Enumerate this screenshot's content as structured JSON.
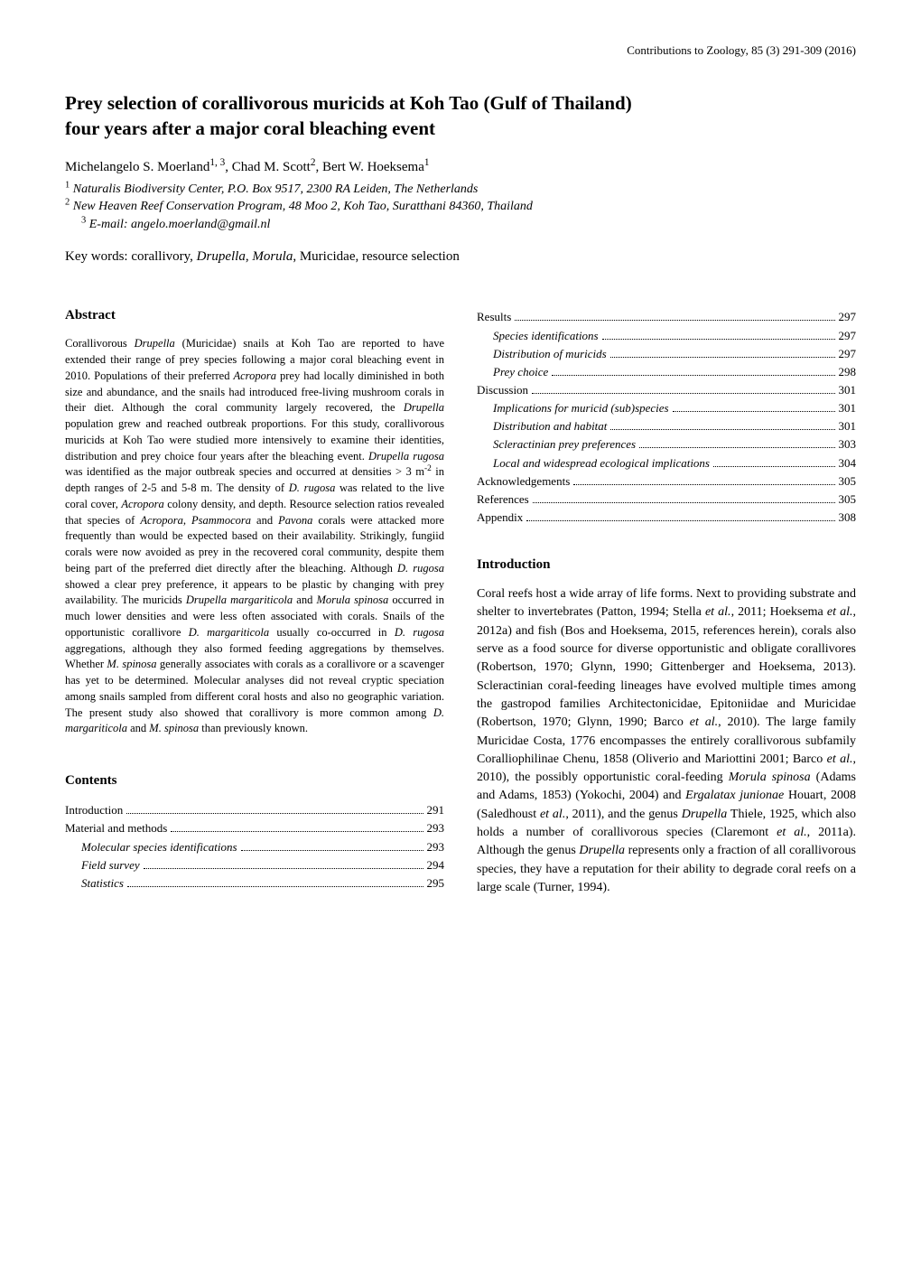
{
  "journal_header": "Contributions to Zoology, 85 (3) 291-309 (2016)",
  "title_line1": "Prey selection of corallivorous muricids at Koh Tao (Gulf of Thailand)",
  "title_line2": "four years after a major coral bleaching event",
  "authors_html": "Michelangelo S. Moerland<sup>1, 3</sup>, Chad M. Scott<sup>2</sup>, Bert W. Hoeksema<sup>1</sup>",
  "affil1_html": "<sup class='sup'>1</sup> Naturalis Biodiversity Center, P.O. Box 9517, 2300 RA Leiden, The Netherlands",
  "affil2_html": "<sup class='sup'>2</sup> New Heaven Reef Conservation Program, 48 Moo 2, Koh Tao, Suratthani 84360, Thailand",
  "affil3_html": "<sup class='sup'>3</sup> E-mail: angelo.moerland@gmail.nl",
  "keywords_prefix": "Key words: corallivory, ",
  "keywords_ital1": "Drupella",
  "keywords_mid": ", ",
  "keywords_ital2": "Morula",
  "keywords_suffix": ", Muricidae, resource selection",
  "abstract_head": "Abstract",
  "abstract_html": "Corallivorous <span class='ital'>Drupella</span> (Muricidae) snails at Koh Tao are reported to have extended their range of prey species following a major coral bleaching event in 2010. Populations of their preferred <span class='ital'>Acropora</span> prey had locally diminished in both size and abundance, and the snails had introduced free-living mushroom corals in their diet. Although the coral community largely recovered, the <span class='ital'>Drupella</span> population grew and reached outbreak proportions. For this study, corallivorous muricids at Koh Tao were studied more intensively to examine their identities, distribution and prey choice four years after the bleaching event. <span class='ital'>Drupella rugosa</span> was identified as the major outbreak species and occurred at densities &gt; 3 m<sup>-2</sup> in depth ranges of 2-5 and 5-8 m. The density of <span class='ital'>D. rugosa</span> was related to the live coral cover, <span class='ital'>Acropora</span> colony density, and depth. Resource selection ratios revealed that species of <span class='ital'>Acropora</span>, <span class='ital'>Psammocora</span> and <span class='ital'>Pavona</span> corals were attacked more frequently than would be expected based on their availability. Strikingly, fungiid corals were now avoided as prey in the recovered coral community, despite them being part of the preferred diet directly after the bleaching. Although <span class='ital'>D. rugosa</span> showed a clear prey preference, it appears to be plastic by changing with prey availability. The muricids <span class='ital'>Drupella margariticola</span> and <span class='ital'>Morula spinosa</span> occurred in much lower densities and were less often associated with corals. Snails of the opportunistic corallivore <span class='ital'>D. margariticola</span> usually co-occurred in <span class='ital'>D. rugosa</span> aggregations, although they also formed feeding aggregations by themselves. Whether <span class='ital'>M. spinosa</span> generally associates with corals as a corallivore or a scavenger has yet to be determined. Molecular analyses did not reveal cryptic speciation among snails sampled from different coral hosts and also no geographic variation. The present study also showed that corallivory is more common among <span class='ital'>D. margariticola</span> and <span class='ital'>M. spinosa</span> than previously known.",
  "contents_head": "Contents",
  "toc_left": [
    {
      "label": "Introduction",
      "page": "291",
      "indent": 0,
      "ital": false
    },
    {
      "label": "Material and methods",
      "page": "293",
      "indent": 0,
      "ital": false
    },
    {
      "label": "Molecular species identifications",
      "page": "293",
      "indent": 1,
      "ital": true
    },
    {
      "label": "Field survey",
      "page": "294",
      "indent": 1,
      "ital": true
    },
    {
      "label": "Statistics",
      "page": "295",
      "indent": 1,
      "ital": true
    }
  ],
  "toc_right": [
    {
      "label": "Results",
      "page": "297",
      "indent": 0,
      "ital": false
    },
    {
      "label": "Species identifications",
      "page": "297",
      "indent": 1,
      "ital": true
    },
    {
      "label": "Distribution of muricids",
      "page": "297",
      "indent": 1,
      "ital": true
    },
    {
      "label": "Prey choice",
      "page": "298",
      "indent": 1,
      "ital": true
    },
    {
      "label": "Discussion",
      "page": "301",
      "indent": 0,
      "ital": false
    },
    {
      "label": "Implications for muricid (sub)species",
      "page": "301",
      "indent": 1,
      "ital": true
    },
    {
      "label": "Distribution and habitat",
      "page": "301",
      "indent": 1,
      "ital": true
    },
    {
      "label": "Scleractinian prey preferences",
      "page": "303",
      "indent": 1,
      "ital": true
    },
    {
      "label": "Local and widespread ecological implications",
      "page": "304",
      "indent": 1,
      "ital": true
    },
    {
      "label": "Acknowledgements",
      "page": "305",
      "indent": 0,
      "ital": false
    },
    {
      "label": "References",
      "page": "305",
      "indent": 0,
      "ital": false
    },
    {
      "label": "Appendix",
      "page": "308",
      "indent": 0,
      "ital": false
    }
  ],
  "intro_head": "Introduction",
  "intro_html": "Coral reefs host a wide array of life forms. Next to providing substrate and shelter to invertebrates (Patton, 1994; Stella <span class='ital'>et al.</span>, 2011; Hoeksema <span class='ital'>et al.</span>, 2012a) and fish (Bos and Hoeksema, 2015, references herein), corals also serve as a food source for diverse opportunistic and obligate corallivores (Robertson, 1970; Glynn, 1990; Gittenberger and Hoeksema, 2013). Scleractinian coral-feeding lineages have evolved multiple times among the gastropod families Architectonicidae, Epitoniidae and Muricidae (Robertson, 1970; Glynn, 1990; Barco <span class='ital'>et al.</span>, 2010). The large family Muricidae Costa, 1776 encompasses the entirely corallivorous subfamily Coralliophilinae Chenu, 1858 (Oliverio and Mariottini 2001; Barco <span class='ital'>et al.</span>, 2010), the possibly opportunistic coral-feeding <span class='ital'>Morula spinosa</span> (Adams and Adams, 1853) (Yokochi, 2004) and <span class='ital'>Ergalatax junionae</span> Houart, 2008 (Saledhoust <span class='ital'>et al.</span>, 2011), and the genus <span class='ital'>Drupella</span> Thiele, 1925, which also holds a number of corallivorous species (Claremont <span class='ital'>et al.</span>, 2011a). Although the genus <span class='ital'>Drupella</span> represents only a fraction of all corallivorous species, they have a reputation for their ability to degrade coral reefs on a large scale (Turner, 1994)."
}
